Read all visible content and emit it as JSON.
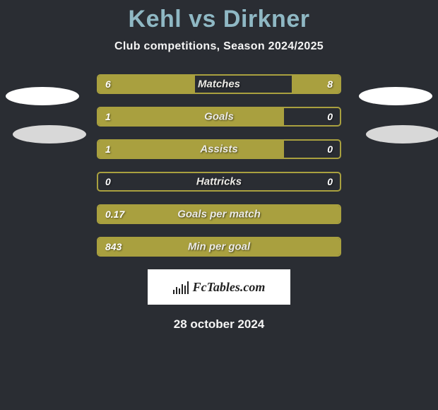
{
  "title": "Kehl vs Dirkner",
  "subtitle": "Club competitions, Season 2024/2025",
  "date_text": "28 october 2024",
  "logo_text": "FcTables.com",
  "colors": {
    "background": "#2a2d33",
    "title_color": "#8fb8c4",
    "text_color": "#f5f5f5",
    "bar_fill": "#a9a03f",
    "bar_border": "#a9a03f",
    "ellipse_light": "#ffffff",
    "ellipse_dark": "#d8d8d8",
    "logo_bg": "#ffffff"
  },
  "stats": [
    {
      "label": "Matches",
      "left_val": "6",
      "right_val": "8",
      "left_pct": 40,
      "right_pct": 20
    },
    {
      "label": "Goals",
      "left_val": "1",
      "right_val": "0",
      "left_pct": 77,
      "right_pct": 0
    },
    {
      "label": "Assists",
      "left_val": "1",
      "right_val": "0",
      "left_pct": 77,
      "right_pct": 0
    },
    {
      "label": "Hattricks",
      "left_val": "0",
      "right_val": "0",
      "left_pct": 0,
      "right_pct": 0
    },
    {
      "label": "Goals per match",
      "left_val": "0.17",
      "right_val": "",
      "left_pct": 100,
      "right_pct": 0
    },
    {
      "label": "Min per goal",
      "left_val": "843",
      "right_val": "",
      "left_pct": 100,
      "right_pct": 0
    }
  ]
}
